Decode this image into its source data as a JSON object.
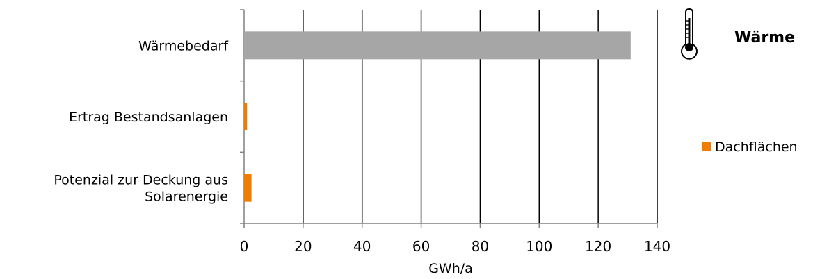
{
  "chart_data": {
    "type": "bar",
    "orientation": "horizontal",
    "categories": [
      [
        "Wärmebedarf"
      ],
      [
        "Ertrag Bestandsanlagen"
      ],
      [
        "Potenzial zur Deckung aus",
        "Solarenergie"
      ]
    ],
    "series": [
      {
        "values": [
          131,
          null,
          null
        ],
        "color": "#a6a6a6"
      },
      {
        "name": "Dachflächen",
        "values": [
          null,
          1,
          2.5
        ],
        "color": "#f07d00"
      }
    ],
    "xlabel": "GWh/a",
    "xlim": [
      0,
      140
    ],
    "xticks": [
      0,
      20,
      40,
      60,
      80,
      100,
      120,
      140
    ],
    "grid": "vertical",
    "legend": {
      "position": "right",
      "entries": [
        "Dachflächen"
      ]
    }
  },
  "side_panel": {
    "title": "Wärme",
    "icon": "thermometer-icon"
  }
}
